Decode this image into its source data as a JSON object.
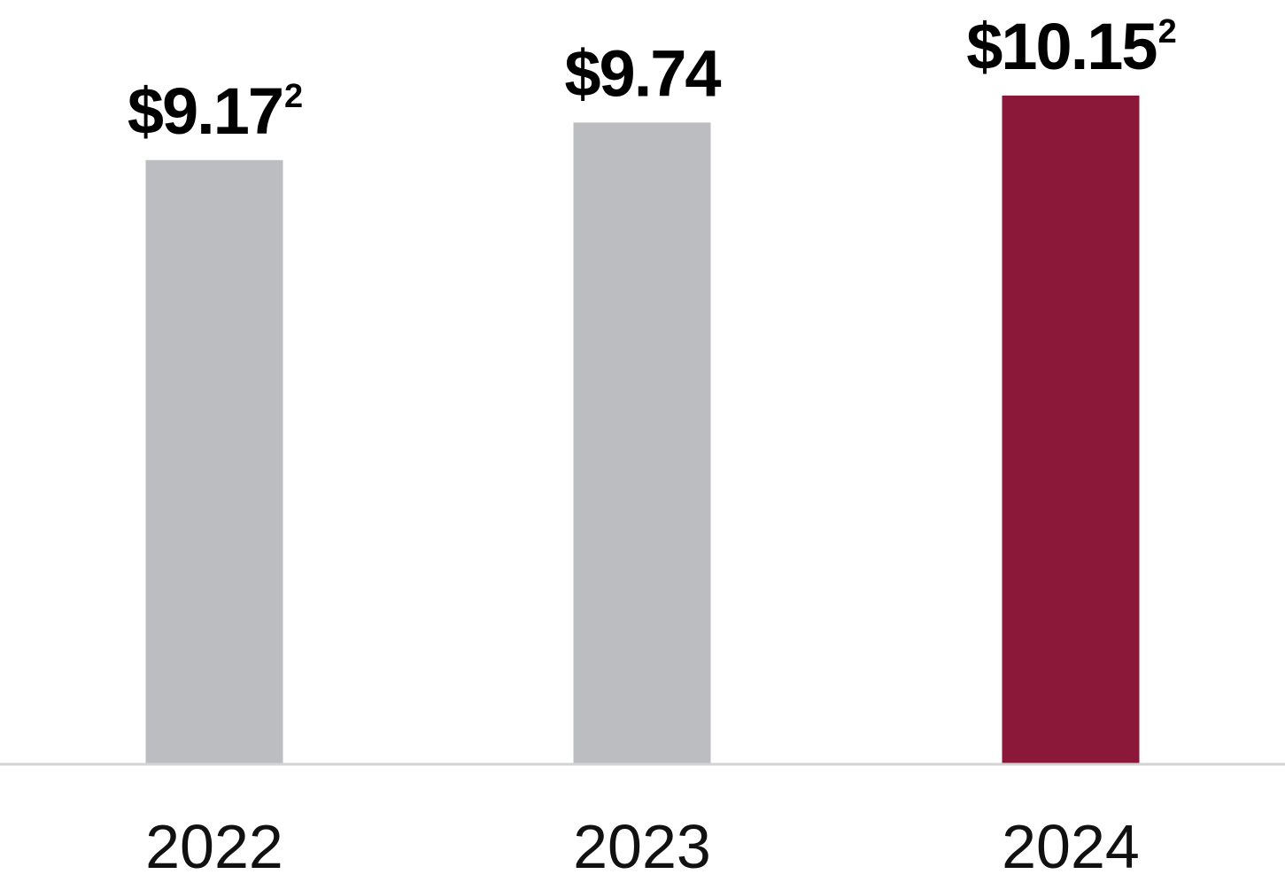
{
  "chart_data": {
    "type": "bar",
    "title": "",
    "xlabel": "",
    "ylabel": "",
    "categories": [
      "2022",
      "2023",
      "2024"
    ],
    "values": [
      9.17,
      9.74,
      10.15
    ],
    "value_labels": [
      "$9.17",
      "$9.74",
      "$10.15"
    ],
    "footnote_marks": [
      "2",
      "",
      "2"
    ],
    "bar_colors": [
      "#bcbdc0",
      "#bcbdc0",
      "#8b1838"
    ],
    "axis_color": "#d3d3d5",
    "ylim": [
      0,
      11.6
    ],
    "grid": false,
    "legend": "none"
  }
}
